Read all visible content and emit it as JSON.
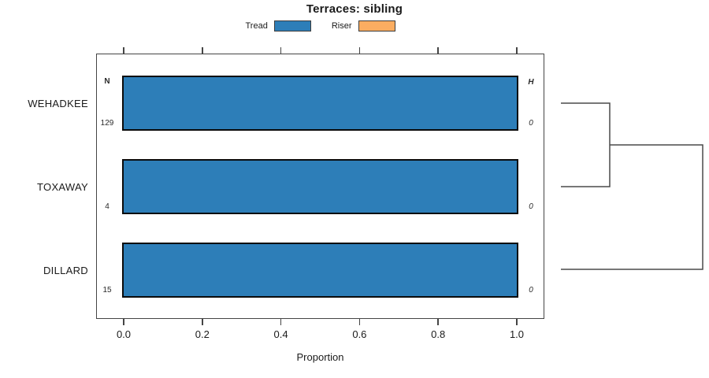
{
  "chart_data": {
    "type": "bar",
    "orientation": "horizontal",
    "title": "Terraces: sibling",
    "xlabel": "Proportion",
    "xlim": [
      0,
      1
    ],
    "xticks": [
      0,
      0.2,
      0.4,
      0.6,
      0.8,
      1
    ],
    "xtick_labels": [
      "0.0",
      "0.2",
      "0.4",
      "0.6",
      "0.8",
      "1.0"
    ],
    "categories": [
      "WEHADKEE",
      "TOXAWAY",
      "DILLARD"
    ],
    "series": [
      {
        "name": "Tread",
        "color": "#2d7eb8",
        "values": [
          1.0,
          1.0,
          1.0
        ]
      },
      {
        "name": "Riser",
        "color": "#fbad61",
        "values": [
          0.0,
          0.0,
          0.0
        ]
      }
    ],
    "legend": {
      "position": "top",
      "entries": [
        {
          "label": "Tread",
          "color": "#2d7eb8"
        },
        {
          "label": "Riser",
          "color": "#fbad61"
        }
      ]
    },
    "annotations": {
      "left": {
        "header": "N",
        "values": [
          "129",
          "4",
          "15"
        ]
      },
      "right": {
        "header": "H",
        "values": [
          "0",
          "0",
          "0"
        ]
      }
    },
    "dendrogram": {
      "side": "right",
      "leaves": [
        "WEHADKEE",
        "TOXAWAY",
        "DILLARD"
      ],
      "merges": [
        {
          "members": [
            "WEHADKEE",
            "TOXAWAY"
          ]
        },
        {
          "members": [
            "WEHADKEE+TOXAWAY",
            "DILLARD"
          ]
        }
      ]
    },
    "grid": false
  }
}
